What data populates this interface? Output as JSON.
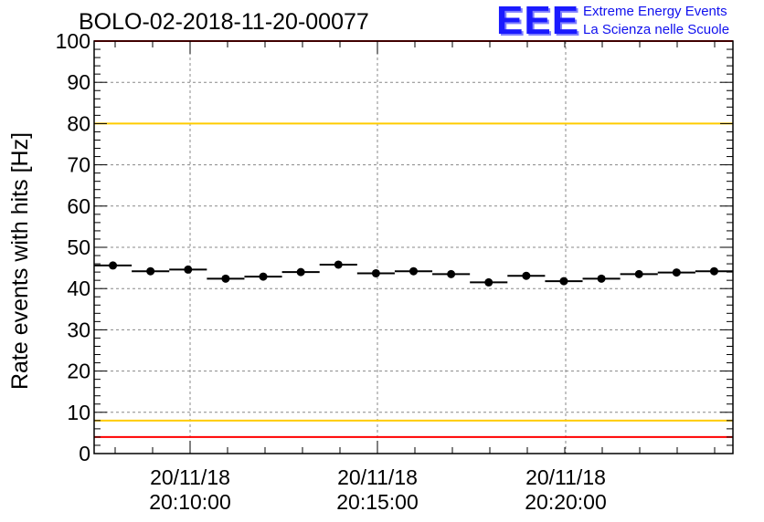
{
  "chart_data": {
    "type": "scatter",
    "title": "BOLO-02-2018-11-20-00077",
    "ylabel": "Rate events with hits [Hz]",
    "xlabel": "",
    "ylim": [
      0,
      100
    ],
    "yticks": [
      "0",
      "10",
      "20",
      "30",
      "40",
      "50",
      "60",
      "70",
      "80",
      "90",
      "100"
    ],
    "x_tick_labels": [
      {
        "date": "20/11/18",
        "time": "20:10:00"
      },
      {
        "date": "20/11/18",
        "time": "20:15:00"
      },
      {
        "date": "20/11/18",
        "time": "20:20:00"
      }
    ],
    "grid": true,
    "reference_lines": [
      {
        "y": 100,
        "color": "#ff0000"
      },
      {
        "y": 80,
        "color": "#ffcc00"
      },
      {
        "y": 8,
        "color": "#ffcc00"
      },
      {
        "y": 4,
        "color": "#ff0000"
      }
    ],
    "values": [
      45.6,
      44.2,
      44.6,
      42.4,
      42.9,
      44.0,
      45.8,
      43.7,
      44.2,
      43.5,
      41.5,
      43.1,
      41.8,
      42.4,
      43.5,
      43.9,
      44.2
    ]
  },
  "logo": {
    "mark": "EEE",
    "line1": "Extreme Energy Events",
    "line2": "La Scienza nelle Scuole",
    "color": "#1a1aff"
  }
}
